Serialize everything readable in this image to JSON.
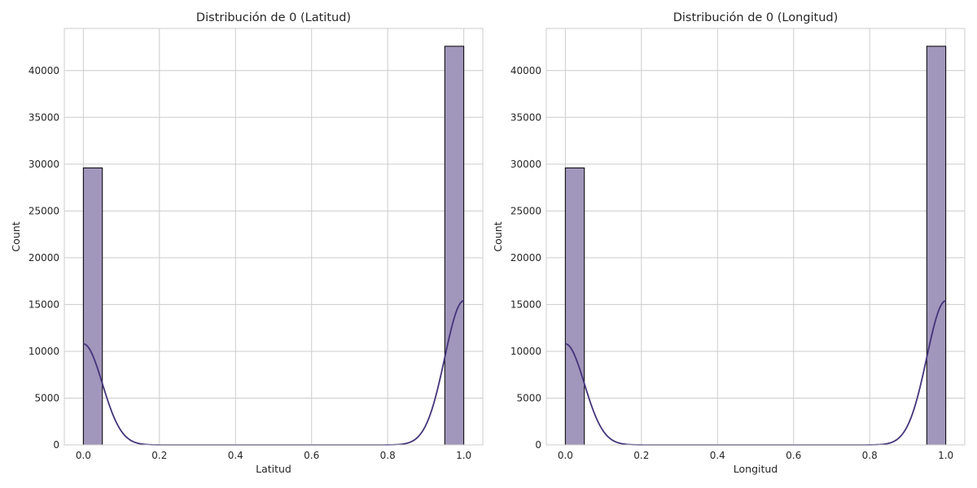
{
  "chart_data": [
    {
      "type": "bar",
      "title": "Distribución de 0 (Latitud)",
      "xlabel": "Latitud",
      "ylabel": "Count",
      "xlim": [
        -0.05,
        1.05
      ],
      "ylim": [
        0,
        44500
      ],
      "x_ticks": [
        "0.0",
        "0.2",
        "0.4",
        "0.6",
        "0.8",
        "1.0"
      ],
      "y_ticks": [
        "0",
        "5000",
        "10000",
        "15000",
        "20000",
        "25000",
        "30000",
        "35000",
        "40000"
      ],
      "bins": [
        {
          "x_start": 0.0,
          "x_end": 0.05,
          "value": 29600
        },
        {
          "x_start": 0.95,
          "x_end": 1.0,
          "value": 42600
        }
      ],
      "kde": {
        "centers": [
          0.0,
          1.0
        ],
        "peaks": [
          10800,
          15400
        ],
        "sigma": 0.05
      },
      "grid": true,
      "bar_color": "#a196bb",
      "line_color": "#44347a"
    },
    {
      "type": "bar",
      "title": "Distribución de 0 (Longitud)",
      "xlabel": "Longitud",
      "ylabel": "Count",
      "xlim": [
        -0.05,
        1.05
      ],
      "ylim": [
        0,
        44500
      ],
      "x_ticks": [
        "0.0",
        "0.2",
        "0.4",
        "0.6",
        "0.8",
        "1.0"
      ],
      "y_ticks": [
        "0",
        "5000",
        "10000",
        "15000",
        "20000",
        "25000",
        "30000",
        "35000",
        "40000"
      ],
      "bins": [
        {
          "x_start": 0.0,
          "x_end": 0.05,
          "value": 29600
        },
        {
          "x_start": 0.95,
          "x_end": 1.0,
          "value": 42600
        }
      ],
      "kde": {
        "centers": [
          0.0,
          1.0
        ],
        "peaks": [
          10800,
          15400
        ],
        "sigma": 0.05
      },
      "grid": true,
      "bar_color": "#a196bb",
      "line_color": "#44347a"
    }
  ]
}
